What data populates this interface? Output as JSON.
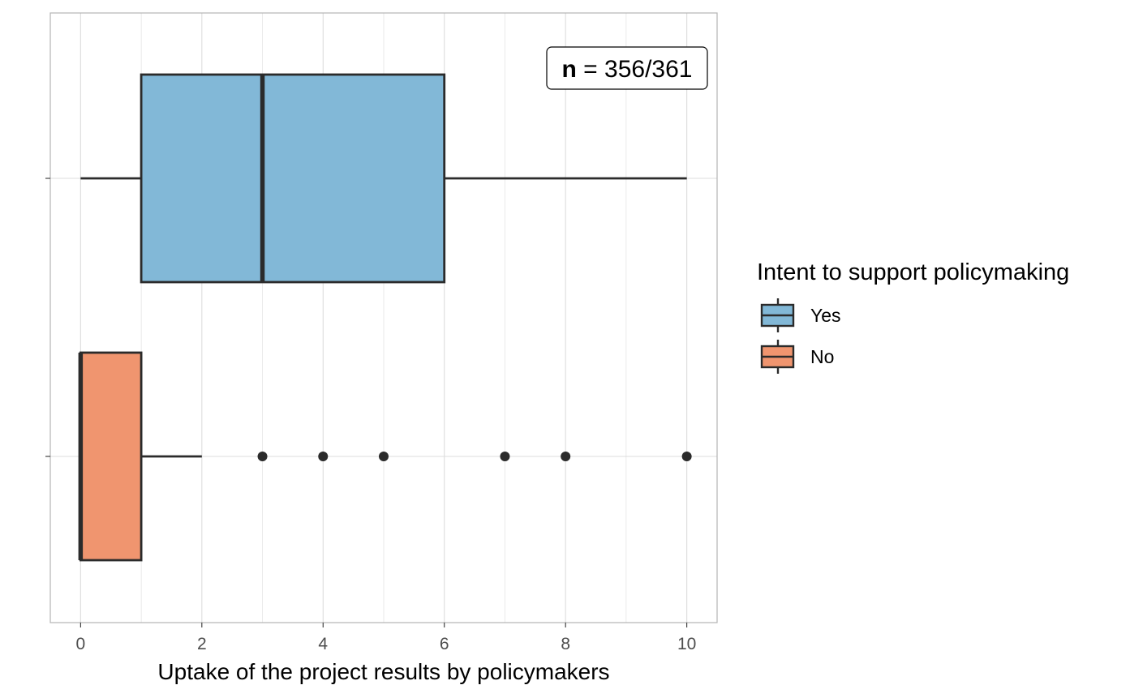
{
  "chart_data": {
    "type": "boxplot",
    "orientation": "horizontal",
    "xlabel": "Uptake of the project results by policymakers",
    "ylabel": "",
    "xlim": [
      -0.5,
      10.5
    ],
    "xticks": [
      0,
      2,
      4,
      6,
      8,
      10
    ],
    "grid": true,
    "legend": {
      "title": "Intent to support policymaking",
      "placement": "right",
      "entries": [
        {
          "label": "Yes",
          "color": "#82B8D7"
        },
        {
          "label": "No",
          "color": "#F0956F"
        }
      ]
    },
    "series": [
      {
        "name": "Yes",
        "color": "#82B8D7",
        "min": 0,
        "q1": 1,
        "median": 3,
        "q3": 6,
        "max": 10,
        "outliers": []
      },
      {
        "name": "No",
        "color": "#F0956F",
        "min": 0,
        "q1": 0,
        "median": 0,
        "q3": 1,
        "max": 2,
        "outliers": [
          3,
          4,
          5,
          7,
          8,
          10
        ]
      }
    ],
    "annotation": {
      "bold": "n",
      "rest": " = 356/361"
    }
  },
  "colors": {
    "panel_border": "#b3b3b3",
    "grid": "#dcdcdc",
    "box_outline": "#2b2b2b"
  }
}
